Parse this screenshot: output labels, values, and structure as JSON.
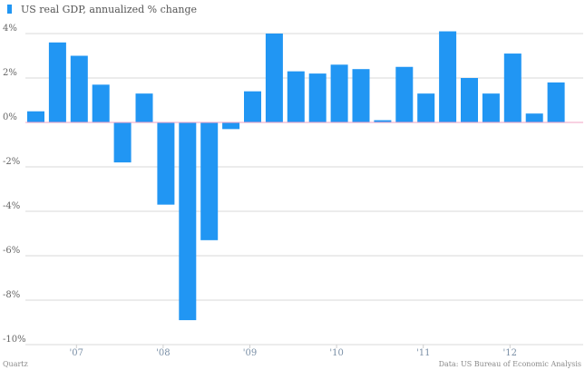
{
  "chart_data": {
    "type": "bar",
    "title": "",
    "xlabel": "",
    "ylabel": "",
    "ylim": [
      -10,
      4.8
    ],
    "y_ticks": [
      {
        "value": 4,
        "label": "4%"
      },
      {
        "value": 2,
        "label": "2%"
      },
      {
        "value": 0,
        "label": "0%"
      },
      {
        "value": -2,
        "label": "-2%"
      },
      {
        "value": -4,
        "label": "-4%"
      },
      {
        "value": -6,
        "label": "-6%"
      },
      {
        "value": -8,
        "label": "-8%"
      },
      {
        "value": -10,
        "label": "-10%"
      }
    ],
    "x_ticks": [
      {
        "bar_index": 2,
        "label": "'07"
      },
      {
        "bar_index": 6,
        "label": "'08"
      },
      {
        "bar_index": 10,
        "label": "'09"
      },
      {
        "bar_index": 14,
        "label": "'10"
      },
      {
        "bar_index": 18,
        "label": "'11"
      },
      {
        "bar_index": 22,
        "label": "'12"
      }
    ],
    "grid": true,
    "legend_position": "top-left",
    "series": [
      {
        "name": "US real GDP, annualized % change",
        "color": "#2196f3",
        "values": [
          0.5,
          3.6,
          3.0,
          1.7,
          -1.8,
          1.3,
          -3.7,
          -8.9,
          -5.3,
          -0.3,
          1.4,
          4.0,
          2.3,
          2.2,
          2.6,
          2.4,
          0.1,
          2.5,
          1.3,
          4.1,
          2.0,
          1.3,
          3.1,
          0.4,
          1.8
        ]
      }
    ]
  },
  "footer": {
    "source_left": "Quartz",
    "source_right": "Data: US Bureau of Economic Analysis"
  }
}
